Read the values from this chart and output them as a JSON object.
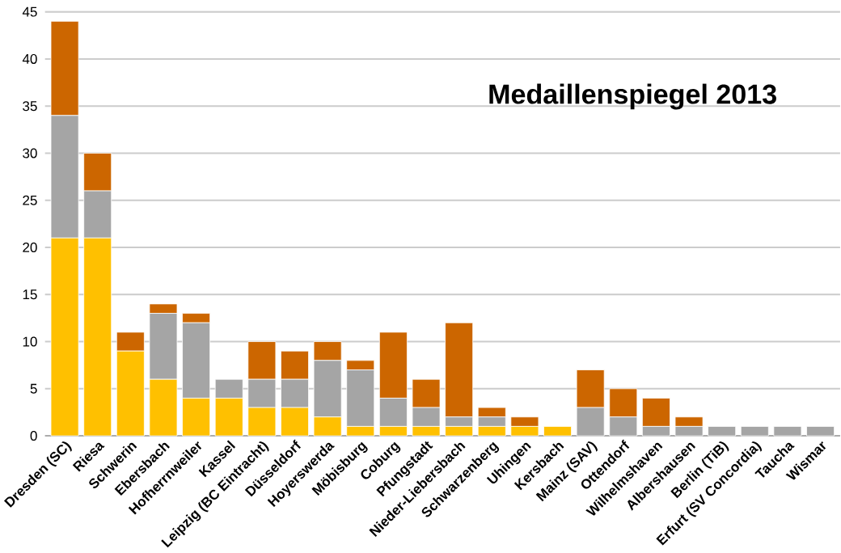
{
  "chart_data": {
    "type": "bar",
    "stacked": true,
    "title": "Medaillenspiegel 2013",
    "categories": [
      "Dresden (SC)",
      "Riesa",
      "Schwerin",
      "Ebersbach",
      "Hofherrnweiler",
      "Kassel",
      "Leipzig (BC Eintracht)",
      "Düsseldorf",
      "Hoyerswerda",
      "Möbisburg",
      "Coburg",
      "Pfungstadt",
      "Nieder-Liebersbach",
      "Schwarzenberg",
      "Uhingen",
      "Kersbach",
      "Mainz (SAV)",
      "Ottendorf",
      "Wilhelmshaven",
      "Albershausen",
      "Berlin (TiB)",
      "Erfurt (SV Concordia)",
      "Taucha",
      "Wismar"
    ],
    "series": [
      {
        "color": "#ffc000",
        "values": [
          21,
          21,
          9,
          6,
          4,
          4,
          3,
          3,
          2,
          1,
          1,
          1,
          1,
          1,
          1,
          1,
          0,
          0,
          0,
          0,
          0,
          0,
          0,
          0
        ]
      },
      {
        "color": "#a5a5a5",
        "values": [
          13,
          5,
          0,
          7,
          8,
          2,
          3,
          3,
          6,
          6,
          3,
          2,
          1,
          1,
          0,
          0,
          3,
          2,
          1,
          1,
          1,
          1,
          1,
          1
        ]
      },
      {
        "color": "#cc6600",
        "values": [
          10,
          4,
          2,
          1,
          1,
          0,
          4,
          3,
          2,
          1,
          7,
          3,
          10,
          1,
          1,
          0,
          4,
          3,
          3,
          1,
          0,
          0,
          0,
          0
        ]
      }
    ],
    "ylim": [
      0,
      45
    ],
    "yticks": [
      0,
      5,
      10,
      15,
      20,
      25,
      30,
      35,
      40,
      45
    ],
    "grid": "y"
  }
}
